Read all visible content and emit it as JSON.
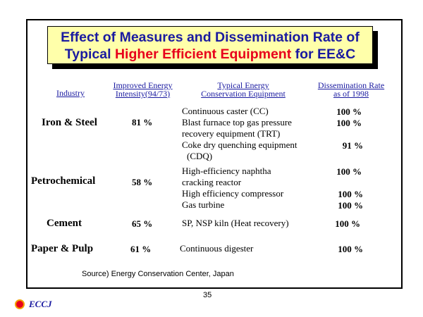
{
  "title": {
    "line1": "Effect of Measures and Dissemination Rate of",
    "line2_pre": "Typical ",
    "line2_highlight": "Higher Efficient Equipment",
    "line2_post": " for EE&C"
  },
  "headers": {
    "industry": "Industry",
    "intensity_line1": "Improved Energy",
    "intensity_line2": "Intensity(94/73)",
    "equipment_line1": "Typical Energy",
    "equipment_line2": "Conservation Equipment",
    "rate_line1": "Dissemination Rate",
    "rate_line2": "as of 1998"
  },
  "rows": [
    {
      "industry": "Iron & Steel",
      "intensity": "81 %",
      "equipment": [
        "Continuous caster (CC)",
        "Blast furnace top gas pressure",
        "recovery  equipment (TRT)",
        "Coke dry quenching equipment",
        "(CDQ)"
      ],
      "rates": [
        "100 %",
        "100 %",
        "91 %"
      ]
    },
    {
      "industry": "Petrochemical",
      "intensity": "58 %",
      "equipment": [
        "High-efficiency naphtha",
        "cracking reactor",
        "High efficiency compressor",
        "Gas turbine"
      ],
      "rates": [
        "100 %",
        "100 %",
        "100 %"
      ]
    },
    {
      "industry": "Cement",
      "intensity": "65 %",
      "equipment": [
        "SP, NSP kiln (Heat recovery)"
      ],
      "rates": [
        "100 %"
      ]
    },
    {
      "industry": "Paper & Pulp",
      "intensity": "61 %",
      "equipment": [
        "Continuous digester"
      ],
      "rates": [
        "100 %"
      ]
    }
  ],
  "source": "Source) Energy Conservation Center, Japan",
  "page_number": "35",
  "logo_text": "ECCJ",
  "colors": {
    "title_bg": "#ffffaa",
    "title_text": "#1a1aa0",
    "title_highlight": "#e8001c",
    "header_text": "#1a1aa0"
  }
}
